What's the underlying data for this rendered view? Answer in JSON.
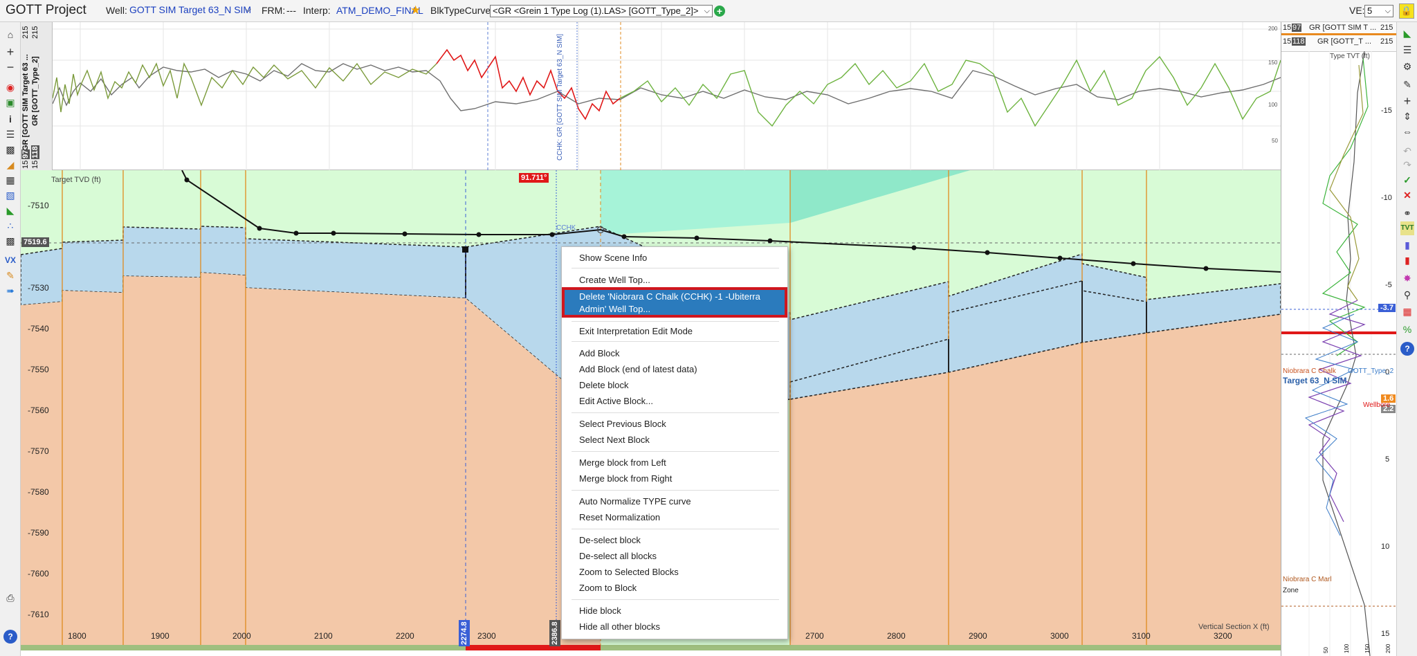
{
  "header": {
    "app_title": "GOTT Project",
    "well_label": "Well:",
    "well_value": "GOTT SIM Target 63_N SIM",
    "frm_label": "FRM:",
    "frm_value": "---",
    "interp_label": "Interp:",
    "interp_value": "ATM_DEMO_FINAL",
    "blk_label": "BlkTypeCurve:",
    "blk_value": "<GR <Grein 1 Type Log (1).LAS> [GOTT_Type_2]>",
    "ve_label": "VE:",
    "ve_value": "5"
  },
  "log_panel": {
    "label_well": "GR [GOTT SIM Target 63 ...",
    "label_type": "GR [GOTT_Type_2]",
    "scale_top": "215",
    "scale_mid_a": "15",
    "scale_mid_b": "97",
    "scale_bot_a": "15",
    "scale_bot_b": "118",
    "right_ticks": [
      "200",
      "150",
      "100",
      "50"
    ],
    "well_marker_label": "CCHK: GR [GOTT SIM Target 63_N SIM]"
  },
  "main_plot": {
    "y_axis_title": "Target TVD (ft)",
    "x_axis_title": "Vertical Section X (ft)",
    "y_ticks": [
      "-7510",
      "-7520",
      "-7530",
      "-7540",
      "-7550",
      "-7560",
      "-7570",
      "-7580",
      "-7590",
      "-7600",
      "-7610"
    ],
    "x_ticks": [
      "1800",
      "1900",
      "2000",
      "2100",
      "2200",
      "2300",
      "2700",
      "2800",
      "2900",
      "3000",
      "3100",
      "3200"
    ],
    "depth_badge": "7519.6",
    "dip_badge": "91.711°",
    "top_label": "CCHK",
    "x_marker_1": "2274.8",
    "x_marker_2": "2386.8"
  },
  "context_menu": {
    "items": [
      "Show Scene Info",
      "Create Well Top...",
      "Delete 'Niobrara C Chalk (CCHK) -1 -Ubiterra",
      "Admin' Well Top...",
      "Exit Interpretation Edit Mode",
      "Add Block",
      "Add Block (end of latest data)",
      "Delete block",
      "Edit Active Block...",
      "Select Previous Block",
      "Select Next Block",
      "Merge block from Left",
      "Merge block from Right",
      "Auto Normalize TYPE curve",
      "Reset Normalization",
      "De-select block",
      "De-select all blocks",
      "Zoom to Selected Blocks",
      "Zoom to Block",
      "Hide block",
      "Hide all other blocks"
    ]
  },
  "type_panel": {
    "legend_1_a": "15",
    "legend_1_b": "97",
    "legend_1_name": "GR [GOTT SIM T ...",
    "legend_1_max": "215",
    "legend_2_a": "15",
    "legend_2_b": "118",
    "legend_2_name": "GR [GOTT_T ...",
    "legend_2_max": "215",
    "title": "Type TVT (ft)",
    "y_ticks": [
      "-15",
      "-10",
      "-5",
      "0",
      "5",
      "10",
      "15"
    ],
    "badge_1": "-3.7",
    "badge_2": "1.6",
    "badge_3": "2.2",
    "label_niobrara": "Niobrara C Chalk",
    "label_gott": "GOTT_Type_2",
    "label_target": "Target 63_N SIM",
    "label_wellbore": "Wellbore",
    "label_marl": "Niobrara C Marl",
    "label_zone": "Zone",
    "x_ticks": [
      "50",
      "100",
      "150",
      "200"
    ]
  },
  "colors": {
    "orange_zone": "#f3c8a8",
    "blue_zone": "#b8d8ec",
    "green_zone": "#d8fbd6",
    "teal": "#a6f3d8",
    "selected": "#2b7bbd",
    "highlight_border": "#d0161e"
  }
}
